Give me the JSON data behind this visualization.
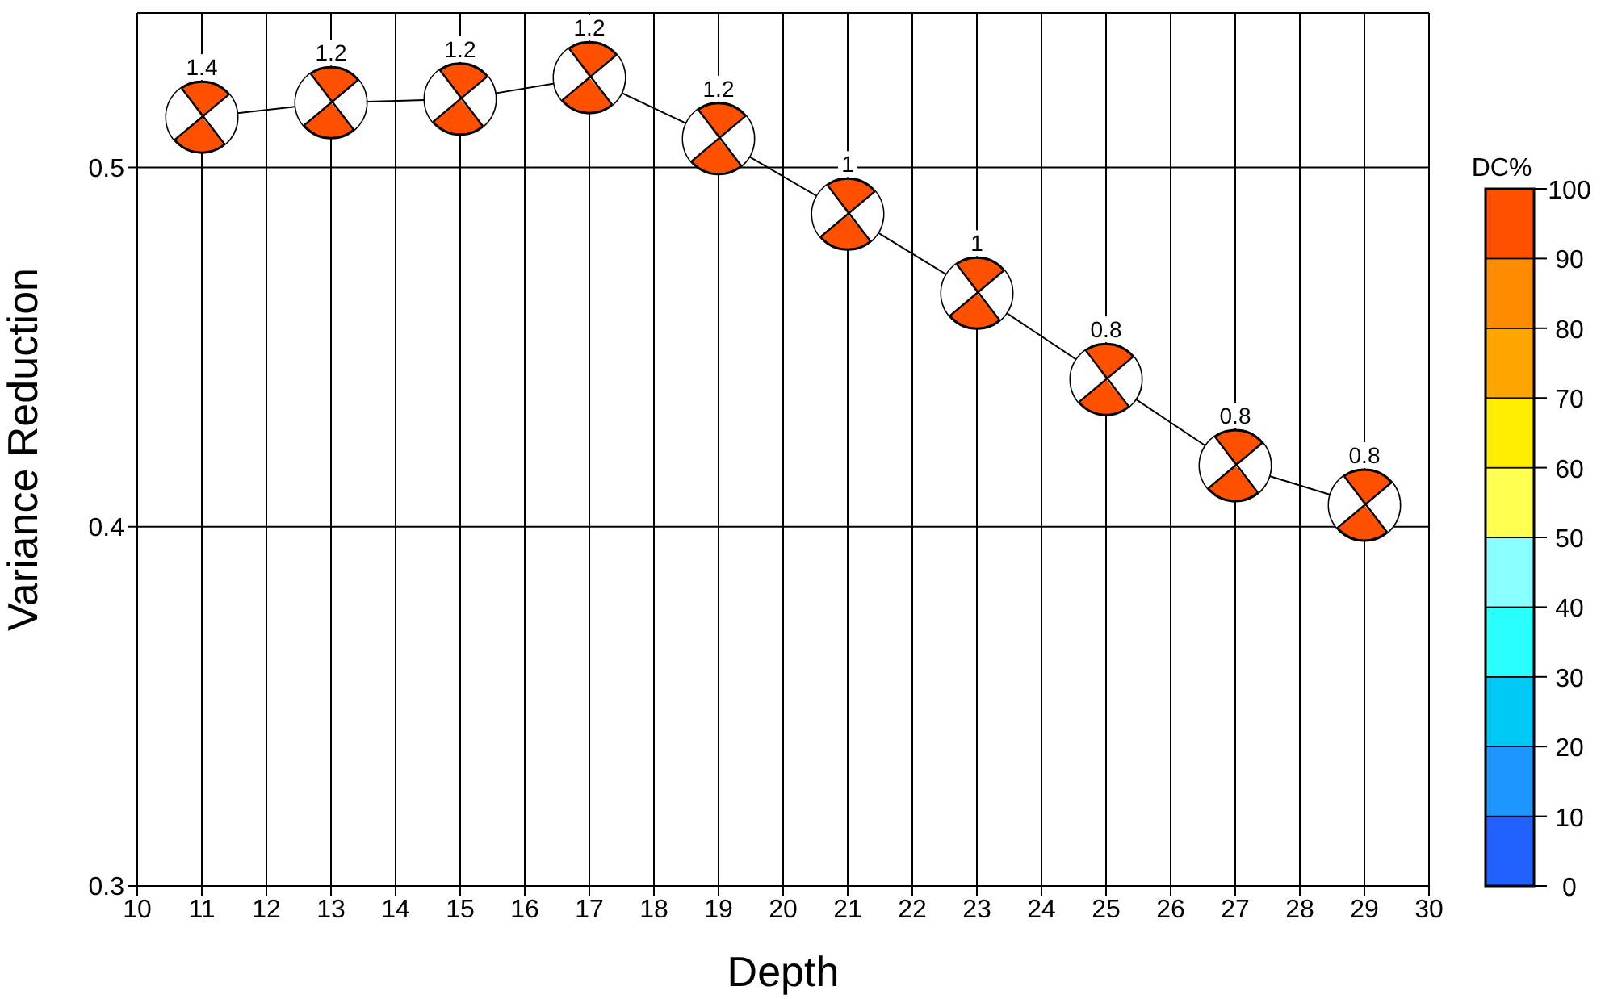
{
  "chart_data": {
    "type": "line",
    "xlabel": "Depth",
    "ylabel": "Variance Reduction",
    "clabel": "DC%",
    "x": [
      11,
      13,
      15,
      17,
      19,
      21,
      23,
      25,
      27,
      29
    ],
    "series": [
      {
        "color": "#000000",
        "marker": "cross",
        "values": [
          0.514,
          0.518,
          0.519,
          0.525,
          0.508,
          0.487,
          0.465,
          0.441,
          0.417,
          0.406
        ]
      },
      {
        "type": "scatter",
        "color": "#ff5000",
        "marker": "circle",
        "values": [
          0.514,
          0.518,
          0.519,
          0.525,
          0.508,
          0.487,
          0.465,
          0.441,
          0.417,
          0.406
        ],
        "cvalues": [
          95,
          95,
          95,
          95,
          95,
          95,
          95,
          95,
          95,
          95
        ]
      }
    ],
    "xlim": [
      10,
      30
    ],
    "xticks": [
      10,
      11,
      12,
      13,
      14,
      15,
      16,
      17,
      18,
      19,
      20,
      21,
      22,
      23,
      24,
      25,
      26,
      27,
      28,
      29,
      30
    ],
    "ylim": [
      0.3,
      0.543
    ],
    "yticks": [
      0.3,
      0.4,
      0.5
    ],
    "clim": [
      0,
      100
    ],
    "cticks": [
      0,
      10,
      20,
      30,
      40,
      50,
      60,
      70,
      80,
      90,
      100
    ],
    "annotations": [
      {
        "text": "1.4",
        "x": 11,
        "y": 0.514
      },
      {
        "text": "1.2",
        "x": 13,
        "y": 0.518
      },
      {
        "text": "1.2",
        "x": 15,
        "y": 0.519
      },
      {
        "text": "1.2",
        "x": 17,
        "y": 0.525
      },
      {
        "text": "1.2",
        "x": 19,
        "y": 0.508
      },
      {
        "text": "1",
        "x": 21,
        "y": 0.487
      },
      {
        "text": "1",
        "x": 23,
        "y": 0.465
      },
      {
        "text": "0.8",
        "x": 25,
        "y": 0.441
      },
      {
        "text": "0.8",
        "x": 27,
        "y": 0.417
      },
      {
        "text": "0.8",
        "x": 29,
        "y": 0.406
      }
    ],
    "grid": true,
    "legend": false
  }
}
